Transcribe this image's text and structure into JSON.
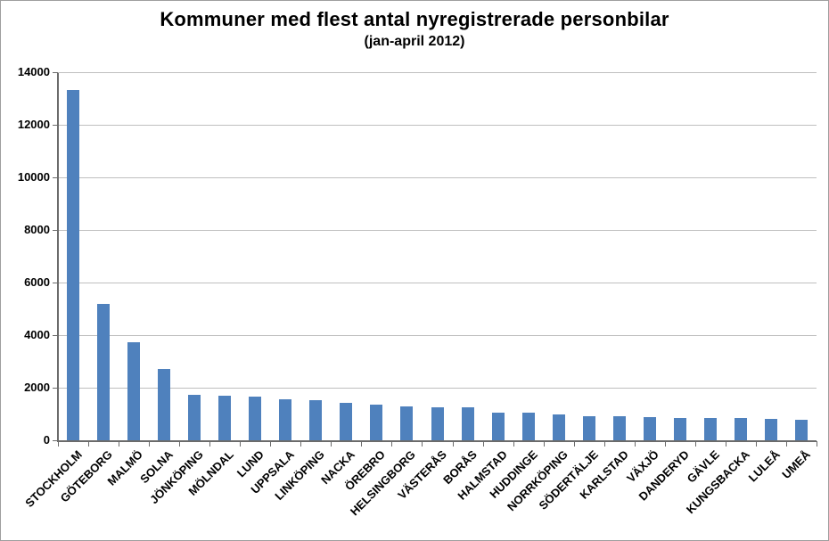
{
  "chart_data": {
    "type": "bar",
    "title": "Kommuner med flest antal nyregistrerade personbilar",
    "subtitle": "(jan-april 2012)",
    "categories": [
      "STOCKHOLM",
      "GÖTEBORG",
      "MALMÖ",
      "SOLNA",
      "JÖNKÖPING",
      "MÖLNDAL",
      "LUND",
      "UPPSALA",
      "LINKÖPING",
      "NACKA",
      "ÖREBRO",
      "HELSINGBORG",
      "VÄSTERÅS",
      "BORÅS",
      "HALMSTAD",
      "HUDDINGE",
      "NORRKÖPING",
      "SÖDERTÄLJE",
      "KARLSTAD",
      "VÄXJÖ",
      "DANDERYD",
      "GÄVLE",
      "KUNGSBACKA",
      "LULEÅ",
      "UMEÅ"
    ],
    "values": [
      13350,
      5230,
      3770,
      2730,
      1760,
      1740,
      1680,
      1610,
      1570,
      1460,
      1390,
      1310,
      1300,
      1290,
      1090,
      1080,
      1010,
      950,
      940,
      900,
      895,
      890,
      870,
      850,
      830
    ],
    "xlabel": "",
    "ylabel": "",
    "ylim": [
      0,
      14000
    ],
    "ytick_step": 2000,
    "ytick_labels": [
      "0",
      "2000",
      "4000",
      "6000",
      "8000",
      "10000",
      "12000",
      "14000"
    ],
    "grid": "horizontal-major",
    "legend": "none",
    "colors": {
      "bar": "#4f81bd",
      "gridline": "#bfbfbf",
      "axis": "#6b6b6b",
      "text": "#000000",
      "background": "#ffffff"
    }
  }
}
